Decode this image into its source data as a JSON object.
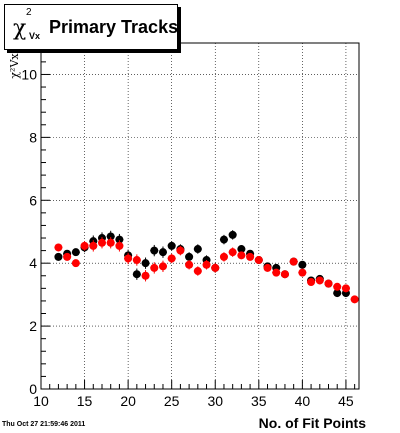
{
  "title": {
    "symbol": "χ",
    "superscript": "2",
    "subscript": "Vx",
    "text": "Primary Tracks"
  },
  "footer": {
    "timestamp": "Thu Oct 27 21:59:46 2011"
  },
  "chart_data": {
    "type": "scatter",
    "title": "Primary Tracks",
    "xlabel": "No. of Fit Points",
    "ylabel": "χ²Vx",
    "xlim": [
      10,
      46.5
    ],
    "ylim": [
      0,
      11
    ],
    "x_ticks": [
      10,
      15,
      20,
      25,
      30,
      35,
      40,
      45
    ],
    "y_ticks": [
      0,
      2,
      4,
      6,
      8,
      10
    ],
    "grid": true,
    "series": [
      {
        "color": "#000000",
        "x": [
          12,
          13,
          14,
          15,
          16,
          17,
          18,
          19,
          20,
          21,
          22,
          23,
          24,
          25,
          26,
          27,
          28,
          29,
          30,
          31,
          32,
          33,
          34,
          35,
          36,
          37,
          38,
          39,
          40,
          41,
          42,
          43,
          44,
          45
        ],
        "y": [
          4.2,
          4.3,
          4.35,
          4.5,
          4.7,
          4.8,
          4.85,
          4.75,
          4.25,
          3.65,
          4.0,
          4.4,
          4.35,
          4.55,
          4.45,
          4.2,
          4.45,
          4.1,
          3.85,
          4.75,
          4.9,
          4.45,
          4.3,
          4.1,
          3.9,
          3.85,
          3.65,
          4.05,
          3.95,
          3.45,
          3.5,
          3.35,
          3.05,
          3.05
        ],
        "err": [
          0.12,
          0.12,
          0.12,
          0.15,
          0.18,
          0.18,
          0.18,
          0.18,
          0.18,
          0.18,
          0.18,
          0.18,
          0.18,
          0.15,
          0.15,
          0.15,
          0.15,
          0.15,
          0.15,
          0.15,
          0.15,
          0.12,
          0.12,
          0.12,
          0.12,
          0.12,
          0.12,
          0.12,
          0.12,
          0.12,
          0.12,
          0.12,
          0.12,
          0.12
        ]
      },
      {
        "color": "#ff0000",
        "x": [
          12,
          13,
          14,
          15,
          16,
          17,
          18,
          19,
          20,
          21,
          22,
          23,
          24,
          25,
          26,
          27,
          28,
          29,
          30,
          31,
          32,
          33,
          34,
          35,
          36,
          37,
          38,
          39,
          40,
          41,
          42,
          43,
          44,
          45,
          46
        ],
        "y": [
          4.5,
          4.2,
          4.0,
          4.55,
          4.55,
          4.65,
          4.65,
          4.55,
          4.15,
          4.1,
          3.6,
          3.85,
          3.9,
          4.15,
          4.4,
          3.95,
          3.75,
          3.95,
          3.85,
          4.2,
          4.35,
          4.25,
          4.2,
          4.1,
          3.85,
          3.7,
          3.65,
          4.05,
          3.7,
          3.4,
          3.45,
          3.35,
          3.25,
          3.2,
          2.85
        ],
        "err": [
          0.12,
          0.12,
          0.12,
          0.15,
          0.18,
          0.18,
          0.18,
          0.18,
          0.18,
          0.18,
          0.18,
          0.18,
          0.18,
          0.15,
          0.15,
          0.15,
          0.15,
          0.15,
          0.15,
          0.15,
          0.15,
          0.12,
          0.12,
          0.12,
          0.12,
          0.12,
          0.12,
          0.12,
          0.12,
          0.12,
          0.12,
          0.12,
          0.12,
          0.12,
          0.12
        ]
      }
    ]
  }
}
